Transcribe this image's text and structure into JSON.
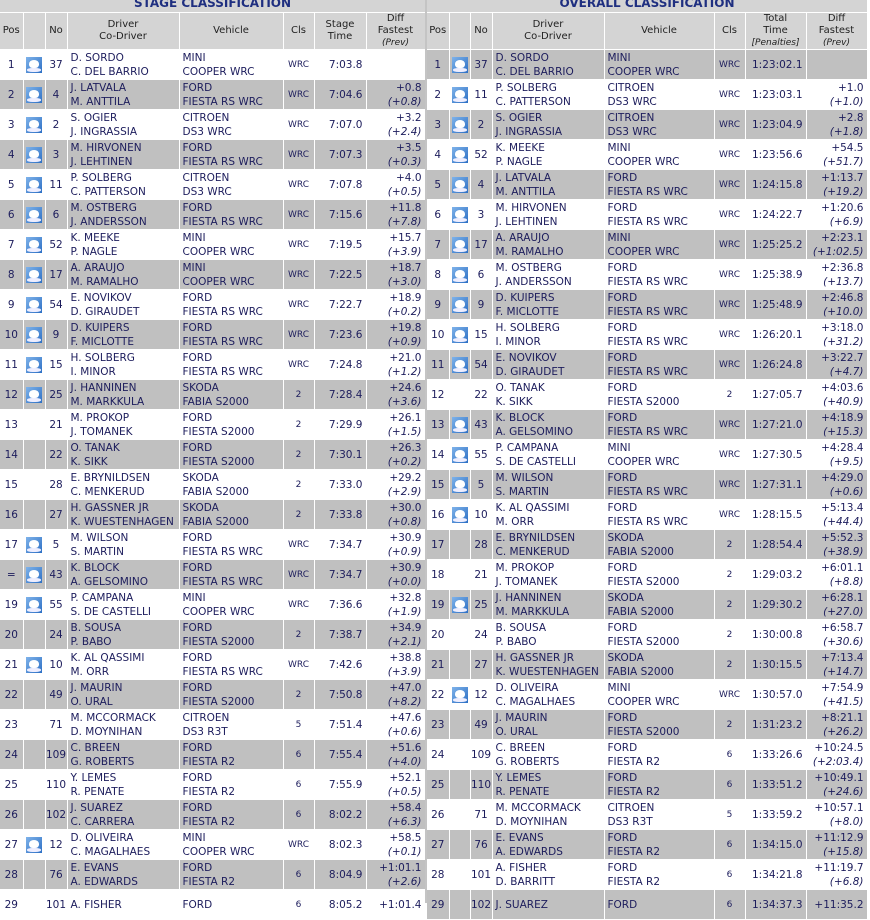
{
  "stage": {
    "title": "STAGE CLASSIFICATION",
    "headers": {
      "pos": "Pos",
      "no": "No",
      "driver": "Driver",
      "codriver": "Co-Driver",
      "vehicle": "Vehicle",
      "cls": "Cls",
      "time1": "Stage",
      "time2": "Time",
      "time3": "",
      "diff1": "Diff",
      "diff2": "Fastest",
      "diff3": "(Prev)"
    },
    "rows": [
      [
        "1",
        true,
        "37",
        "D. SORDO",
        "C. DEL BARRIO",
        "MINI",
        "COOPER WRC",
        "WRC",
        "7:03.8",
        "",
        ""
      ],
      [
        "2",
        true,
        "4",
        "J. LATVALA",
        "M. ANTTILA",
        "FORD",
        "FIESTA RS WRC",
        "WRC",
        "7:04.6",
        "+0.8",
        "(+0.8)"
      ],
      [
        "3",
        true,
        "2",
        "S. OGIER",
        "J. INGRASSIA",
        "CITROEN",
        "DS3 WRC",
        "WRC",
        "7:07.0",
        "+3.2",
        "(+2.4)"
      ],
      [
        "4",
        true,
        "3",
        "M. HIRVONEN",
        "J. LEHTINEN",
        "FORD",
        "FIESTA RS WRC",
        "WRC",
        "7:07.3",
        "+3.5",
        "(+0.3)"
      ],
      [
        "5",
        true,
        "11",
        "P. SOLBERG",
        "C. PATTERSON",
        "CITROEN",
        "DS3 WRC",
        "WRC",
        "7:07.8",
        "+4.0",
        "(+0.5)"
      ],
      [
        "6",
        true,
        "6",
        "M. OSTBERG",
        "J. ANDERSSON",
        "FORD",
        "FIESTA RS WRC",
        "WRC",
        "7:15.6",
        "+11.8",
        "(+7.8)"
      ],
      [
        "7",
        true,
        "52",
        "K. MEEKE",
        "P. NAGLE",
        "MINI",
        "COOPER WRC",
        "WRC",
        "7:19.5",
        "+15.7",
        "(+3.9)"
      ],
      [
        "8",
        true,
        "17",
        "A. ARAUJO",
        "M. RAMALHO",
        "MINI",
        "COOPER WRC",
        "WRC",
        "7:22.5",
        "+18.7",
        "(+3.0)"
      ],
      [
        "9",
        true,
        "54",
        "E. NOVIKOV",
        "D. GIRAUDET",
        "FORD",
        "FIESTA RS WRC",
        "WRC",
        "7:22.7",
        "+18.9",
        "(+0.2)"
      ],
      [
        "10",
        true,
        "9",
        "D. KUIPERS",
        "F. MICLOTTE",
        "FORD",
        "FIESTA RS WRC",
        "WRC",
        "7:23.6",
        "+19.8",
        "(+0.9)"
      ],
      [
        "11",
        true,
        "15",
        "H. SOLBERG",
        "I. MINOR",
        "FORD",
        "FIESTA RS WRC",
        "WRC",
        "7:24.8",
        "+21.0",
        "(+1.2)"
      ],
      [
        "12",
        true,
        "25",
        "J. HANNINEN",
        "M. MARKKULA",
        "SKODA",
        "FABIA S2000",
        "2",
        "7:28.4",
        "+24.6",
        "(+3.6)"
      ],
      [
        "13",
        false,
        "21",
        "M. PROKOP",
        "J. TOMANEK",
        "FORD",
        "FIESTA S2000",
        "2",
        "7:29.9",
        "+26.1",
        "(+1.5)"
      ],
      [
        "14",
        false,
        "22",
        "O. TANAK",
        "K. SIKK",
        "FORD",
        "FIESTA S2000",
        "2",
        "7:30.1",
        "+26.3",
        "(+0.2)"
      ],
      [
        "15",
        false,
        "28",
        "E. BRYNILDSEN",
        "C. MENKERUD",
        "SKODA",
        "FABIA S2000",
        "2",
        "7:33.0",
        "+29.2",
        "(+2.9)"
      ],
      [
        "16",
        false,
        "27",
        "H. GASSNER JR",
        "K. WUESTENHAGEN",
        "SKODA",
        "FABIA S2000",
        "2",
        "7:33.8",
        "+30.0",
        "(+0.8)"
      ],
      [
        "17",
        true,
        "5",
        "M. WILSON",
        "S. MARTIN",
        "FORD",
        "FIESTA RS WRC",
        "WRC",
        "7:34.7",
        "+30.9",
        "(+0.9)"
      ],
      [
        "=",
        true,
        "43",
        "K. BLOCK",
        "A. GELSOMINO",
        "FORD",
        "FIESTA RS WRC",
        "WRC",
        "7:34.7",
        "+30.9",
        "(+0.0)"
      ],
      [
        "19",
        true,
        "55",
        "P. CAMPANA",
        "S. DE CASTELLI",
        "MINI",
        "COOPER WRC",
        "WRC",
        "7:36.6",
        "+32.8",
        "(+1.9)"
      ],
      [
        "20",
        false,
        "24",
        "B. SOUSA",
        "P. BABO",
        "FORD",
        "FIESTA S2000",
        "2",
        "7:38.7",
        "+34.9",
        "(+2.1)"
      ],
      [
        "21",
        true,
        "10",
        "K. AL QASSIMI",
        "M. ORR",
        "FORD",
        "FIESTA RS WRC",
        "WRC",
        "7:42.6",
        "+38.8",
        "(+3.9)"
      ],
      [
        "22",
        false,
        "49",
        "J. MAURIN",
        "O. URAL",
        "FORD",
        "FIESTA S2000",
        "2",
        "7:50.8",
        "+47.0",
        "(+8.2)"
      ],
      [
        "23",
        false,
        "71",
        "M. MCCORMACK",
        "D. MOYNIHAN",
        "CITROEN",
        "DS3 R3T",
        "5",
        "7:51.4",
        "+47.6",
        "(+0.6)"
      ],
      [
        "24",
        false,
        "109",
        "C. BREEN",
        "G. ROBERTS",
        "FORD",
        "FIESTA R2",
        "6",
        "7:55.4",
        "+51.6",
        "(+4.0)"
      ],
      [
        "25",
        false,
        "110",
        "Y. LEMES",
        "R. PENATE",
        "FORD",
        "FIESTA R2",
        "6",
        "7:55.9",
        "+52.1",
        "(+0.5)"
      ],
      [
        "26",
        false,
        "102",
        "J. SUAREZ",
        "C. CARRERA",
        "FORD",
        "FIESTA R2",
        "6",
        "8:02.2",
        "+58.4",
        "(+6.3)"
      ],
      [
        "27",
        true,
        "12",
        "D. OLIVEIRA",
        "C. MAGALHAES",
        "MINI",
        "COOPER WRC",
        "WRC",
        "8:02.3",
        "+58.5",
        "(+0.1)"
      ],
      [
        "28",
        false,
        "76",
        "E. EVANS",
        "A. EDWARDS",
        "FORD",
        "FIESTA R2",
        "6",
        "8:04.9",
        "+1:01.1",
        "(+2.6)"
      ],
      [
        "29",
        false,
        "101",
        "A. FISHER",
        "",
        "FORD",
        "",
        "6",
        "8:05.2",
        "+1:01.4",
        ""
      ]
    ]
  },
  "overall": {
    "title": "OVERALL CLASSIFICATION",
    "headers": {
      "pos": "Pos",
      "no": "No",
      "driver": "Driver",
      "codriver": "Co-Driver",
      "vehicle": "Vehicle",
      "cls": "Cls",
      "time1": "Total",
      "time2": "Time",
      "time3": "[Penalties]",
      "diff1": "Diff",
      "diff2": "Fastest",
      "diff3": "(Prev)"
    },
    "rows": [
      [
        "1",
        true,
        "37",
        "D. SORDO",
        "C. DEL BARRIO",
        "MINI",
        "COOPER WRC",
        "WRC",
        "1:23:02.1",
        "",
        ""
      ],
      [
        "2",
        true,
        "11",
        "P. SOLBERG",
        "C. PATTERSON",
        "CITROEN",
        "DS3 WRC",
        "WRC",
        "1:23:03.1",
        "+1.0",
        "(+1.0)"
      ],
      [
        "3",
        true,
        "2",
        "S. OGIER",
        "J. INGRASSIA",
        "CITROEN",
        "DS3 WRC",
        "WRC",
        "1:23:04.9",
        "+2.8",
        "(+1.8)"
      ],
      [
        "4",
        true,
        "52",
        "K. MEEKE",
        "P. NAGLE",
        "MINI",
        "COOPER WRC",
        "WRC",
        "1:23:56.6",
        "+54.5",
        "(+51.7)"
      ],
      [
        "5",
        true,
        "4",
        "J. LATVALA",
        "M. ANTTILA",
        "FORD",
        "FIESTA RS WRC",
        "WRC",
        "1:24:15.8",
        "+1:13.7",
        "(+19.2)"
      ],
      [
        "6",
        true,
        "3",
        "M. HIRVONEN",
        "J. LEHTINEN",
        "FORD",
        "FIESTA RS WRC",
        "WRC",
        "1:24:22.7",
        "+1:20.6",
        "(+6.9)"
      ],
      [
        "7",
        true,
        "17",
        "A. ARAUJO",
        "M. RAMALHO",
        "MINI",
        "COOPER WRC",
        "WRC",
        "1:25:25.2",
        "+2:23.1",
        "(+1:02.5)"
      ],
      [
        "8",
        true,
        "6",
        "M. OSTBERG",
        "J. ANDERSSON",
        "FORD",
        "FIESTA RS WRC",
        "WRC",
        "1:25:38.9",
        "+2:36.8",
        "(+13.7)"
      ],
      [
        "9",
        true,
        "9",
        "D. KUIPERS",
        "F. MICLOTTE",
        "FORD",
        "FIESTA RS WRC",
        "WRC",
        "1:25:48.9",
        "+2:46.8",
        "(+10.0)"
      ],
      [
        "10",
        true,
        "15",
        "H. SOLBERG",
        "I. MINOR",
        "FORD",
        "FIESTA RS WRC",
        "WRC",
        "1:26:20.1",
        "+3:18.0",
        "(+31.2)"
      ],
      [
        "11",
        true,
        "54",
        "E. NOVIKOV",
        "D. GIRAUDET",
        "FORD",
        "FIESTA RS WRC",
        "WRC",
        "1:26:24.8",
        "+3:22.7",
        "(+4.7)"
      ],
      [
        "12",
        false,
        "22",
        "O. TANAK",
        "K. SIKK",
        "FORD",
        "FIESTA S2000",
        "2",
        "1:27:05.7",
        "+4:03.6",
        "(+40.9)"
      ],
      [
        "13",
        true,
        "43",
        "K. BLOCK",
        "A. GELSOMINO",
        "FORD",
        "FIESTA RS WRC",
        "WRC",
        "1:27:21.0",
        "+4:18.9",
        "(+15.3)"
      ],
      [
        "14",
        true,
        "55",
        "P. CAMPANA",
        "S. DE CASTELLI",
        "MINI",
        "COOPER WRC",
        "WRC",
        "1:27:30.5",
        "+4:28.4",
        "(+9.5)"
      ],
      [
        "15",
        true,
        "5",
        "M. WILSON",
        "S. MARTIN",
        "FORD",
        "FIESTA RS WRC",
        "WRC",
        "1:27:31.1",
        "+4:29.0",
        "(+0.6)"
      ],
      [
        "16",
        true,
        "10",
        "K. AL QASSIMI",
        "M. ORR",
        "FORD",
        "FIESTA RS WRC",
        "WRC",
        "1:28:15.5",
        "+5:13.4",
        "(+44.4)"
      ],
      [
        "17",
        false,
        "28",
        "E. BRYNILDSEN",
        "C. MENKERUD",
        "SKODA",
        "FABIA S2000",
        "2",
        "1:28:54.4",
        "+5:52.3",
        "(+38.9)"
      ],
      [
        "18",
        false,
        "21",
        "M. PROKOP",
        "J. TOMANEK",
        "FORD",
        "FIESTA S2000",
        "2",
        "1:29:03.2",
        "+6:01.1",
        "(+8.8)"
      ],
      [
        "19",
        true,
        "25",
        "J. HANNINEN",
        "M. MARKKULA",
        "SKODA",
        "FABIA S2000",
        "2",
        "1:29:30.2",
        "+6:28.1",
        "(+27.0)"
      ],
      [
        "20",
        false,
        "24",
        "B. SOUSA",
        "P. BABO",
        "FORD",
        "FIESTA S2000",
        "2",
        "1:30:00.8",
        "+6:58.7",
        "(+30.6)"
      ],
      [
        "21",
        false,
        "27",
        "H. GASSNER JR",
        "K. WUESTENHAGEN",
        "SKODA",
        "FABIA S2000",
        "2",
        "1:30:15.5",
        "+7:13.4",
        "(+14.7)"
      ],
      [
        "22",
        true,
        "12",
        "D. OLIVEIRA",
        "C. MAGALHAES",
        "MINI",
        "COOPER WRC",
        "WRC",
        "1:30:57.0",
        "+7:54.9",
        "(+41.5)"
      ],
      [
        "23",
        false,
        "49",
        "J. MAURIN",
        "O. URAL",
        "FORD",
        "FIESTA S2000",
        "2",
        "1:31:23.2",
        "+8:21.1",
        "(+26.2)"
      ],
      [
        "24",
        false,
        "109",
        "C. BREEN",
        "G. ROBERTS",
        "FORD",
        "FIESTA R2",
        "6",
        "1:33:26.6",
        "+10:24.5",
        "(+2:03.4)"
      ],
      [
        "25",
        false,
        "110",
        "Y. LEMES",
        "R. PENATE",
        "FORD",
        "FIESTA R2",
        "6",
        "1:33:51.2",
        "+10:49.1",
        "(+24.6)"
      ],
      [
        "26",
        false,
        "71",
        "M. MCCORMACK",
        "D. MOYNIHAN",
        "CITROEN",
        "DS3 R3T",
        "5",
        "1:33:59.2",
        "+10:57.1",
        "(+8.0)"
      ],
      [
        "27",
        false,
        "76",
        "E. EVANS",
        "A. EDWARDS",
        "FORD",
        "FIESTA R2",
        "6",
        "1:34:15.0",
        "+11:12.9",
        "(+15.8)"
      ],
      [
        "28",
        false,
        "101",
        "A. FISHER",
        "D. BARRITT",
        "FORD",
        "FIESTA R2",
        "6",
        "1:34:21.8",
        "+11:19.7",
        "(+6.8)"
      ],
      [
        "29",
        false,
        "102",
        "J. SUAREZ",
        "",
        "FORD",
        "",
        "6",
        "1:34:37.3",
        "+11:35.2",
        ""
      ]
    ]
  },
  "colors": {
    "row_alt": "#c0c0c0",
    "header": "#d4d4d4",
    "text": "#1c1c5c",
    "title": "#1f2f80"
  },
  "icons": {
    "driver_badge": "michelin-badge-icon"
  }
}
